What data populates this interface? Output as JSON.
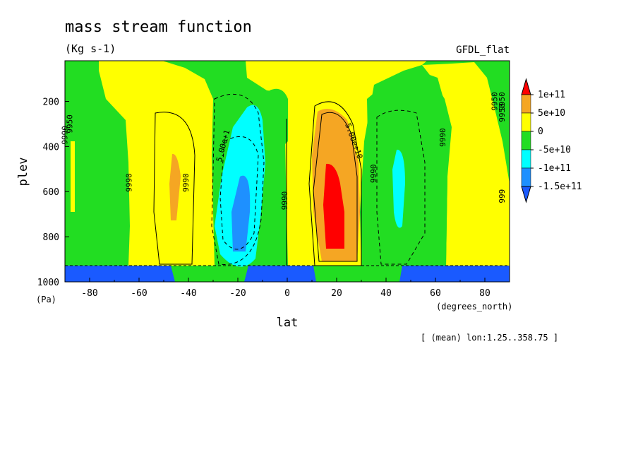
{
  "chart_data": {
    "type": "heatmap",
    "title": "mass stream function",
    "units": "(Kg s-1)",
    "dataset": "GFDL_flat",
    "xlabel": "lat",
    "xunits": "(degrees_north)",
    "ylabel": "plev",
    "yunits": "(Pa)",
    "footer": "[ (mean) lon:1.25..358.75 ]",
    "xlim": [
      -90,
      90
    ],
    "ylim": [
      1000,
      20
    ],
    "y_inverted": true,
    "xticks": [
      -80,
      -60,
      -40,
      -20,
      0,
      20,
      40,
      60,
      80
    ],
    "xtick_labels": [
      "-80",
      "-60",
      "-40",
      "-20",
      "0",
      "20",
      "40",
      "60",
      "80"
    ],
    "yticks": [
      200,
      400,
      600,
      800,
      1000
    ],
    "ytick_labels": [
      "200",
      "400",
      "600",
      "800",
      "1000"
    ],
    "colorbar": {
      "labels": [
        "1e+11",
        "5e+10",
        "0",
        "-5e+10",
        "-1e+11",
        "-1.5e+11"
      ],
      "levels": [
        100000000000.0,
        50000000000.0,
        0,
        -50000000000.0,
        -100000000000.0,
        -150000000000.0
      ],
      "colors": [
        "#ff0000",
        "#f5a623",
        "#ffff00",
        "#22dd22",
        "#00ffff",
        "#1e90ff",
        "#1a5aff"
      ]
    },
    "cells": [
      {
        "name": "southern-polar-cell-negative",
        "lat_range": [
          -90,
          -62
        ],
        "plev_range": [
          20,
          920
        ],
        "value_class": "-5e+10"
      },
      {
        "name": "southern-ferrel-cell-positive",
        "lat_range": [
          -62,
          -38
        ],
        "plev_range": [
          20,
          920
        ],
        "value_class": "0..5e+10",
        "core": "5e+10 near lat -47, plev 500-700"
      },
      {
        "name": "southern-hadley-cell-negative",
        "lat_range": [
          -36,
          -8
        ],
        "plev_range": [
          120,
          920
        ],
        "value_class": "-1e+11",
        "core": "-1.5e+11 near lat -20, plev 550-850"
      },
      {
        "name": "northern-hadley-cell-positive",
        "lat_range": [
          8,
          34
        ],
        "plev_range": [
          120,
          920
        ],
        "value_class": "1e+11",
        "core": "1e+11 near lat 20, plev 500-850"
      },
      {
        "name": "northern-ferrel-cell-negative",
        "lat_range": [
          36,
          64
        ],
        "plev_range": [
          140,
          920
        ],
        "value_class": "-5e+10",
        "core": "-1e+11 near lat 46, plev 400-750"
      },
      {
        "name": "northern-polar-cell-positive",
        "lat_range": [
          66,
          90
        ],
        "plev_range": [
          20,
          920
        ],
        "value_class": "0..5e+10"
      }
    ],
    "contour_labels": [
      "9990",
      "9990",
      "9990",
      "5.00e+1",
      "9990",
      "5.00e+10",
      "9990",
      "9990",
      "9950",
      "9950",
      "9950",
      "9950",
      "999"
    ],
    "masked_regions": [
      {
        "name": "surface-mask-south",
        "lat_range": [
          -90,
          -46
        ],
        "plev_range": [
          920,
          1000
        ]
      },
      {
        "name": "surface-mask-tropics",
        "lat_range": [
          -18,
          12
        ],
        "plev_range": [
          920,
          1000
        ]
      },
      {
        "name": "surface-mask-north",
        "lat_range": [
          46,
          90
        ],
        "plev_range": [
          920,
          1000
        ]
      }
    ],
    "grid": false,
    "legend": "colorbar right"
  }
}
